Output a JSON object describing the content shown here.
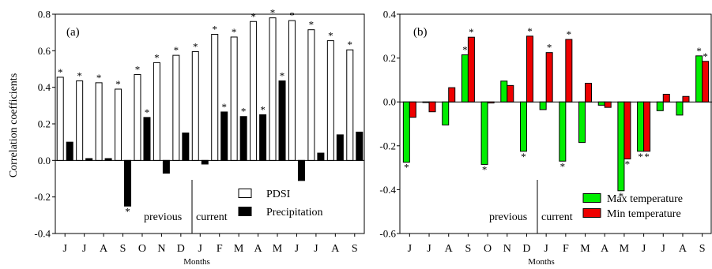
{
  "chart_data": [
    {
      "type": "bar",
      "panel_label": "(a)",
      "ylabel": "Correlation coefficients",
      "xlabel": "Months",
      "categories": [
        "J",
        "J",
        "A",
        "S",
        "O",
        "N",
        "D",
        "J",
        "F",
        "M",
        "A",
        "M",
        "J",
        "J",
        "A",
        "S"
      ],
      "ylim": [
        -0.4,
        0.8
      ],
      "yticks": [
        "-0.4",
        "-0.2",
        "0.0",
        "0.2",
        "0.4",
        "0.6",
        "0.8"
      ],
      "yticks_values": [
        -0.4,
        -0.2,
        0.0,
        0.2,
        0.4,
        0.6,
        0.8
      ],
      "period_labels": {
        "previous": "previous",
        "current": "current"
      },
      "legend_position": "bottom-right",
      "series": [
        {
          "name": "PDSI",
          "color": "#ffffff",
          "values": [
            0.455,
            0.435,
            0.425,
            0.39,
            0.47,
            0.535,
            0.575,
            0.595,
            0.69,
            0.675,
            0.76,
            0.78,
            0.765,
            0.715,
            0.655,
            0.605
          ],
          "significant": [
            true,
            true,
            true,
            true,
            true,
            true,
            true,
            true,
            true,
            true,
            true,
            true,
            true,
            true,
            true,
            true
          ]
        },
        {
          "name": "Precipitation",
          "color": "#000000",
          "values": [
            0.1,
            0.01,
            0.01,
            -0.25,
            0.235,
            -0.07,
            0.15,
            -0.02,
            0.265,
            0.24,
            0.25,
            0.435,
            -0.11,
            0.04,
            0.14,
            0.155
          ],
          "significant": [
            false,
            false,
            false,
            true,
            true,
            false,
            false,
            false,
            true,
            true,
            true,
            true,
            false,
            false,
            false,
            false
          ]
        }
      ],
      "significance_marker": "*"
    },
    {
      "type": "bar",
      "panel_label": "(b)",
      "xlabel": "Months",
      "categories": [
        "J",
        "J",
        "A",
        "S",
        "O",
        "N",
        "D",
        "J",
        "F",
        "M",
        "A",
        "M",
        "J",
        "J",
        "A",
        "S"
      ],
      "ylim": [
        -0.6,
        0.4
      ],
      "yticks": [
        "-0.6",
        "-0.4",
        "-0.2",
        "0.0",
        "0.2",
        "0.4"
      ],
      "yticks_values": [
        -0.6,
        -0.4,
        -0.2,
        0.0,
        0.2,
        0.4
      ],
      "period_labels": {
        "previous": "previous",
        "current": "current"
      },
      "legend_position": "bottom-right",
      "series": [
        {
          "name": "Max temperature",
          "color": "#00ee00",
          "values": [
            -0.275,
            0.0,
            -0.105,
            0.215,
            -0.285,
            0.095,
            -0.225,
            -0.035,
            -0.27,
            -0.185,
            -0.015,
            -0.405,
            -0.225,
            -0.04,
            -0.06,
            0.21
          ],
          "significant": [
            true,
            false,
            false,
            true,
            true,
            false,
            true,
            false,
            true,
            false,
            false,
            true,
            true,
            false,
            false,
            true
          ]
        },
        {
          "name": "Min temperature",
          "color": "#ee0000",
          "values": [
            -0.07,
            -0.045,
            0.065,
            0.295,
            -0.005,
            0.075,
            0.3,
            0.225,
            0.285,
            0.085,
            -0.025,
            -0.26,
            -0.225,
            0.035,
            0.025,
            0.185
          ],
          "significant": [
            false,
            false,
            false,
            true,
            false,
            false,
            true,
            true,
            true,
            false,
            false,
            true,
            true,
            false,
            false,
            true
          ]
        }
      ],
      "significance_marker": "*"
    }
  ]
}
